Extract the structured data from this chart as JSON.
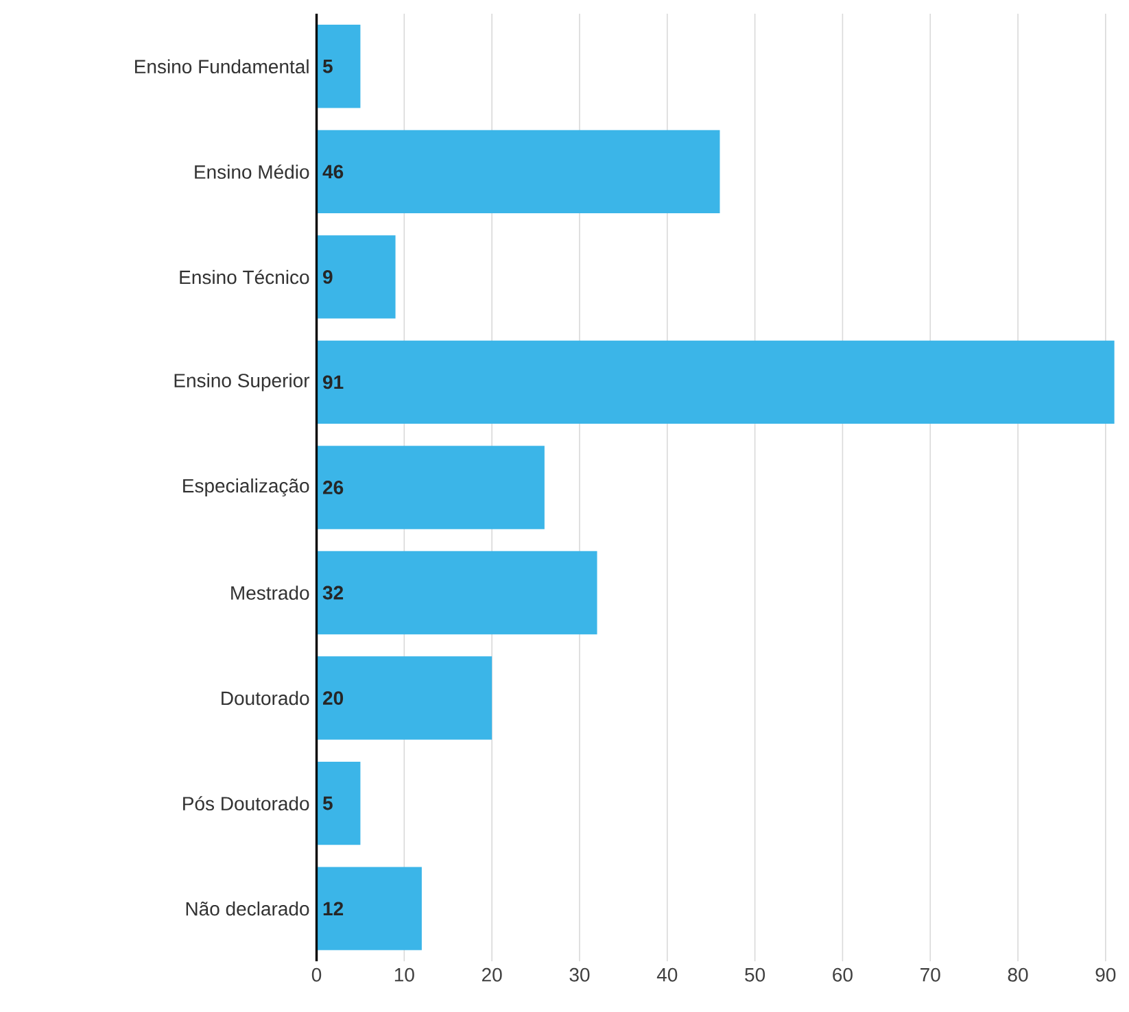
{
  "chart_data": {
    "type": "bar",
    "orientation": "horizontal",
    "categories": [
      "Ensino Fundamental",
      "Ensino Médio",
      "Ensino Técnico",
      "Ensino Superior",
      "Especialização",
      "Mestrado",
      "Doutorado",
      "Pós Doutorado",
      "Não declarado"
    ],
    "values": [
      5,
      46,
      9,
      91,
      26,
      32,
      20,
      5,
      12
    ],
    "color": "#3bb5e8",
    "xlim": [
      0,
      91
    ],
    "xticks": [
      0,
      10,
      20,
      30,
      40,
      50,
      60,
      70,
      80,
      90
    ],
    "grid": "x",
    "data_labels": true
  }
}
